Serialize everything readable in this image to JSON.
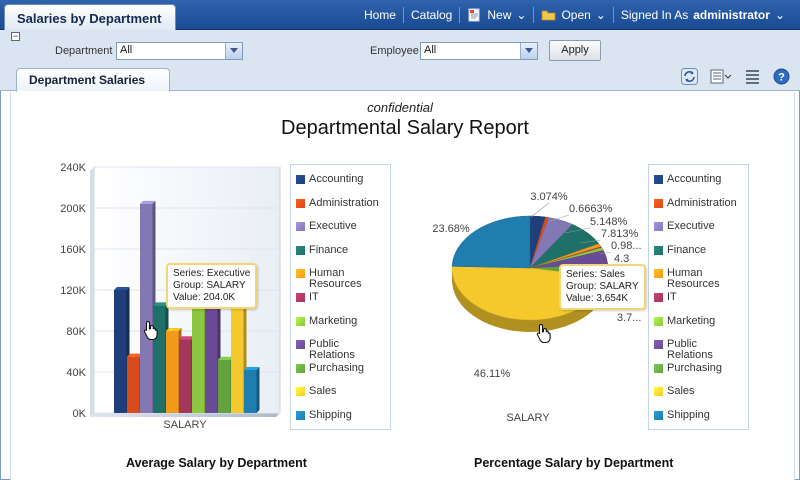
{
  "app": {
    "tab_title": "Salaries by Department"
  },
  "topnav": {
    "home": "Home",
    "catalog": "Catalog",
    "new": "New",
    "open": "Open",
    "signed_in_prefix": "Signed In As",
    "user": "administrator"
  },
  "prompts": {
    "department_label": "Department",
    "department_value": "All",
    "employee_label": "Employee",
    "employee_value": "All",
    "apply_label": "Apply"
  },
  "section_tab": "Department Salaries",
  "report": {
    "subtitle": "confidential",
    "title": "Departmental Salary Report"
  },
  "legend": [
    {
      "name": "Accounting",
      "color": "#1f3f7a"
    },
    {
      "name": "Administration",
      "color": "#d94a1c"
    },
    {
      "name": "Executive",
      "color": "#8478b4"
    },
    {
      "name": "Finance",
      "color": "#1e7068"
    },
    {
      "name": "Human Resources",
      "color": "#f29a1c"
    },
    {
      "name": "IT",
      "color": "#a3365a"
    },
    {
      "name": "Marketing",
      "color": "#8dc63f"
    },
    {
      "name": "Public Relations",
      "color": "#6a4b96"
    },
    {
      "name": "Purchasing",
      "color": "#62a33f"
    },
    {
      "name": "Sales",
      "color": "#f5c92c"
    },
    {
      "name": "Shipping",
      "color": "#1f7db0"
    }
  ],
  "bar_chart": {
    "caption": "Average Salary by Department",
    "group_label": "SALARY",
    "tooltip": {
      "series": "Series: Executive",
      "group": "Group: SALARY",
      "value": "Value: 204.0K"
    }
  },
  "pie_chart": {
    "caption": "Percentage Salary by Department",
    "group_label": "SALARY",
    "tooltip": {
      "series": "Series: Sales",
      "group": "Group: SALARY",
      "value": "Value: 3,654K"
    }
  },
  "chart_data": [
    {
      "type": "bar",
      "title": "Average Salary by Department",
      "xlabel": "SALARY",
      "ylabel": "",
      "categories": [
        "SALARY"
      ],
      "ylim": [
        0,
        240000
      ],
      "yticks": [
        "0K",
        "40K",
        "80K",
        "120K",
        "160K",
        "200K",
        "240K"
      ],
      "series": [
        {
          "name": "Accounting",
          "values": [
            120000
          ]
        },
        {
          "name": "Administration",
          "values": [
            55000
          ]
        },
        {
          "name": "Executive",
          "values": [
            204000
          ]
        },
        {
          "name": "Finance",
          "values": [
            105000
          ]
        },
        {
          "name": "Human Resources",
          "values": [
            80000
          ]
        },
        {
          "name": "IT",
          "values": [
            72000
          ]
        },
        {
          "name": "Marketing",
          "values": [
            112000
          ]
        },
        {
          "name": "Public Relations",
          "values": [
            113000
          ]
        },
        {
          "name": "Purchasing",
          "values": [
            52000
          ]
        },
        {
          "name": "Sales",
          "values": [
            110000
          ]
        },
        {
          "name": "Shipping",
          "values": [
            42000
          ]
        }
      ],
      "legend": "right",
      "grid": true
    },
    {
      "type": "pie",
      "title": "Percentage Salary by Department",
      "xlabel": "SALARY",
      "categories": [
        "Accounting",
        "Administration",
        "Executive",
        "Finance",
        "Human Resources",
        "IT",
        "Marketing",
        "Public Relations",
        "Purchasing",
        "Sales",
        "Shipping"
      ],
      "values": [
        3.074,
        0.6663,
        5.148,
        7.813,
        0.98,
        0.3,
        0.9,
        4.3,
        3.7,
        46.11,
        23.68
      ],
      "labels": [
        "3.074%",
        "0.6663%",
        "5.148%",
        "7.813%",
        "0.98...",
        "",
        "",
        "4.3",
        "3.7...",
        "46.11%",
        "23.68%"
      ],
      "legend": "right"
    }
  ]
}
